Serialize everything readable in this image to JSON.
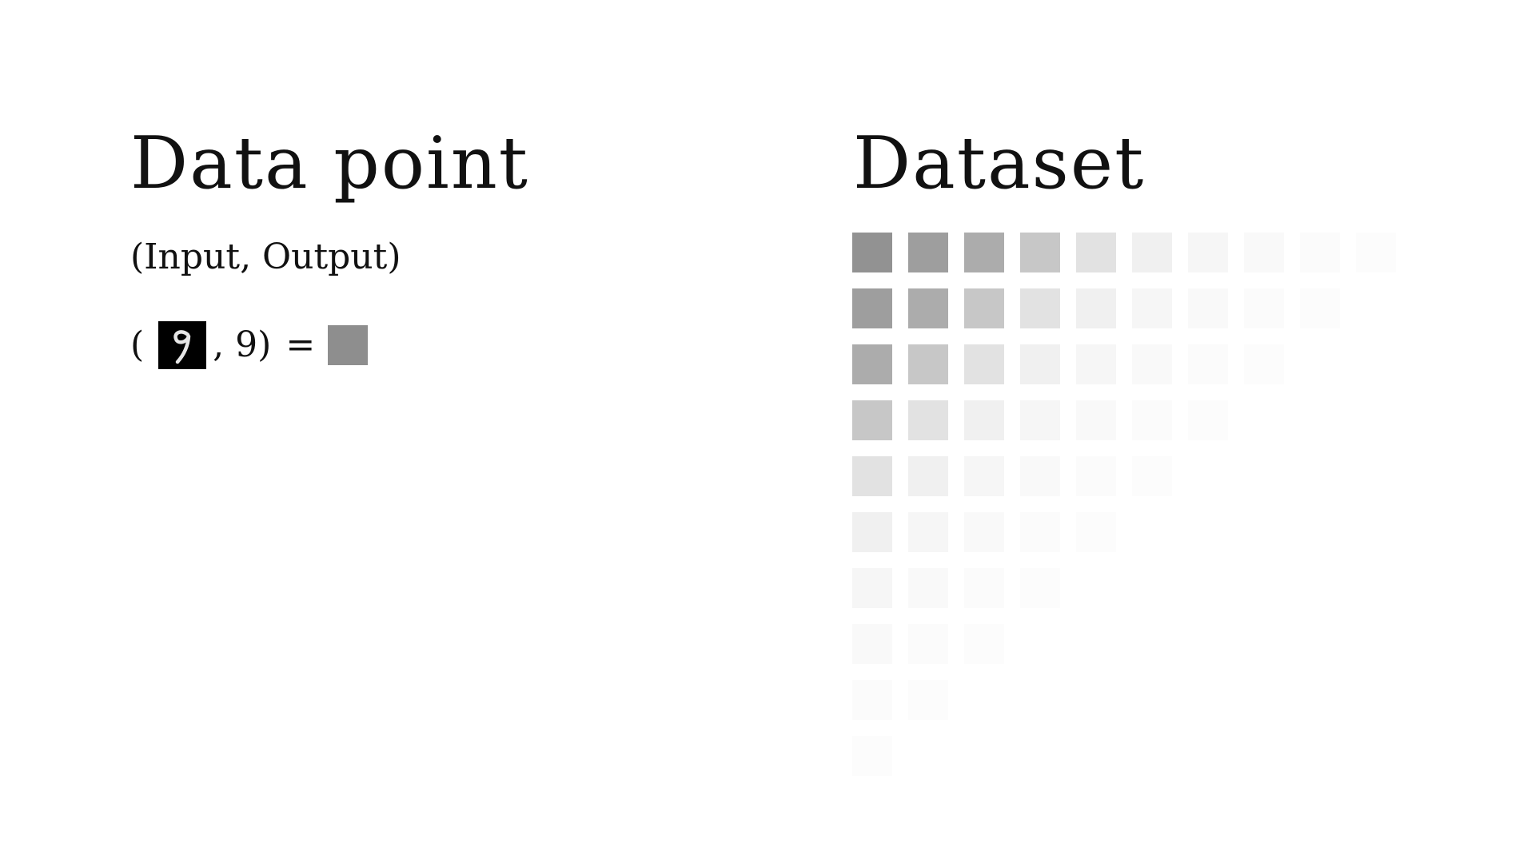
{
  "left_panel": {
    "title": "Data point",
    "subtitle": "(Input, Output)",
    "equation": {
      "open_paren": "(",
      "input_icon": "handwritten-digit-9-image",
      "comma": ",",
      "label": "9)",
      "equals": "=",
      "swatch_color": "#8e8e8e"
    }
  },
  "right_panel": {
    "title": "Dataset",
    "grid_rows": [
      [
        "#929292",
        "#9e9e9e",
        "#acacac",
        "#c7c7c7",
        "#e2e2e2",
        "#f0f0f0",
        "#f6f6f6",
        "#f9f9f9",
        "#fbfbfb",
        "#fcfcfc"
      ],
      [
        "#9e9e9e",
        "#acacac",
        "#c7c7c7",
        "#e2e2e2",
        "#f0f0f0",
        "#f6f6f6",
        "#f9f9f9",
        "#fbfbfb",
        "#fcfcfc"
      ],
      [
        "#acacac",
        "#c7c7c7",
        "#e2e2e2",
        "#f0f0f0",
        "#f6f6f6",
        "#f9f9f9",
        "#fbfbfb",
        "#fcfcfc"
      ],
      [
        "#c7c7c7",
        "#e2e2e2",
        "#f0f0f0",
        "#f6f6f6",
        "#f9f9f9",
        "#fbfbfb",
        "#fcfcfc"
      ],
      [
        "#e2e2e2",
        "#f0f0f0",
        "#f6f6f6",
        "#f9f9f9",
        "#fbfbfb",
        "#fcfcfc"
      ],
      [
        "#f0f0f0",
        "#f6f6f6",
        "#f9f9f9",
        "#fbfbfb",
        "#fcfcfc"
      ],
      [
        "#f6f6f6",
        "#f9f9f9",
        "#fbfbfb",
        "#fcfcfc"
      ],
      [
        "#f9f9f9",
        "#fbfbfb",
        "#fcfcfc"
      ],
      [
        "#fbfbfb",
        "#fcfcfc"
      ],
      [
        "#fcfcfc"
      ]
    ]
  }
}
